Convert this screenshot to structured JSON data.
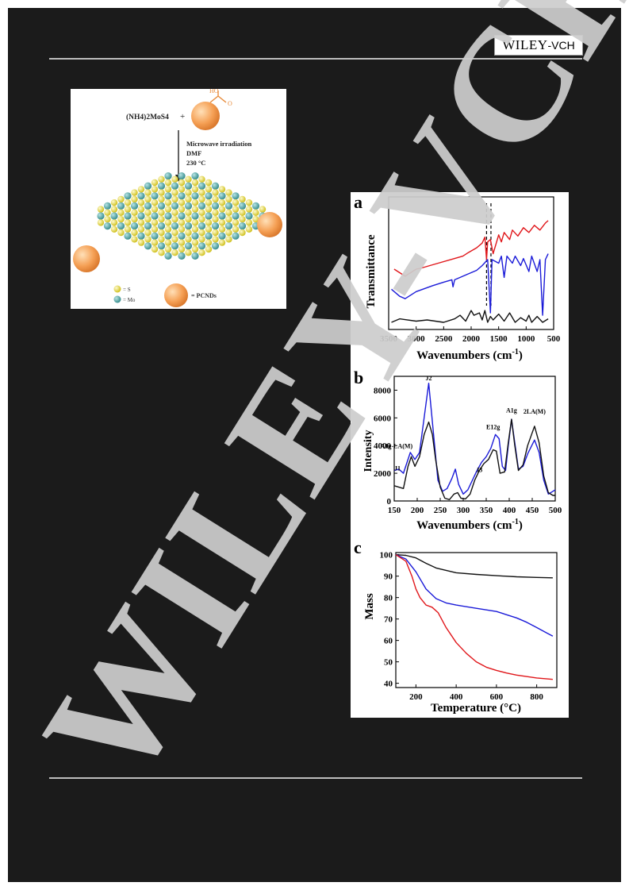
{
  "logo": {
    "wiley": "WILEY",
    "vch": "-VCH"
  },
  "watermark": {
    "text": "WILEY-VCH"
  },
  "scheme": {
    "reactant1": "(NH4)2MoS4",
    "plus": "+",
    "ho_label": "HO",
    "o_label": "O",
    "conditions": [
      "Microwave irradiation",
      "DMF",
      "230 °C"
    ],
    "legend_s": "= S",
    "legend_mo": "= Mo",
    "legend_pcnd": "= PCNDs"
  },
  "colors": {
    "red": "#e0161a",
    "blue": "#1a1ad8",
    "black": "#111111",
    "orange": "#f5a055",
    "yellow": "#e8dc2a",
    "teal": "#3f9e9e"
  },
  "chart_data": [
    {
      "panel": "a",
      "type": "line",
      "xlabel": "Wavenumbers (cm-1)",
      "ylabel": "Transmittance",
      "xlim": [
        3500,
        500
      ],
      "x_ticks": [
        3500,
        3000,
        2500,
        2000,
        1500,
        1000,
        500
      ],
      "dashed_lines_x": [
        1720,
        1640
      ],
      "series": [
        {
          "color": "red",
          "points": [
            [
              3400,
              0.47
            ],
            [
              3200,
              0.41
            ],
            [
              3000,
              0.47
            ],
            [
              2900,
              0.48
            ],
            [
              2600,
              0.52
            ],
            [
              2300,
              0.56
            ],
            [
              2150,
              0.58
            ],
            [
              2050,
              0.61
            ],
            [
              1900,
              0.65
            ],
            [
              1800,
              0.69
            ],
            [
              1750,
              0.74
            ],
            [
              1720,
              0.55
            ],
            [
              1700,
              0.7
            ],
            [
              1650,
              0.72
            ],
            [
              1600,
              0.6
            ],
            [
              1500,
              0.76
            ],
            [
              1450,
              0.7
            ],
            [
              1400,
              0.78
            ],
            [
              1300,
              0.72
            ],
            [
              1250,
              0.8
            ],
            [
              1150,
              0.75
            ],
            [
              1050,
              0.82
            ],
            [
              950,
              0.78
            ],
            [
              850,
              0.84
            ],
            [
              750,
              0.8
            ],
            [
              650,
              0.86
            ],
            [
              600,
              0.88
            ]
          ]
        },
        {
          "color": "blue",
          "points": [
            [
              3450,
              0.3
            ],
            [
              3300,
              0.24
            ],
            [
              3200,
              0.22
            ],
            [
              3000,
              0.28
            ],
            [
              2700,
              0.33
            ],
            [
              2500,
              0.36
            ],
            [
              2350,
              0.38
            ],
            [
              2330,
              0.32
            ],
            [
              2300,
              0.38
            ],
            [
              2100,
              0.42
            ],
            [
              1900,
              0.46
            ],
            [
              1800,
              0.5
            ],
            [
              1700,
              0.55
            ],
            [
              1650,
              0.1
            ],
            [
              1620,
              0.55
            ],
            [
              1500,
              0.52
            ],
            [
              1450,
              0.58
            ],
            [
              1400,
              0.4
            ],
            [
              1350,
              0.58
            ],
            [
              1250,
              0.52
            ],
            [
              1200,
              0.58
            ],
            [
              1100,
              0.5
            ],
            [
              1050,
              0.56
            ],
            [
              950,
              0.45
            ],
            [
              900,
              0.58
            ],
            [
              800,
              0.45
            ],
            [
              750,
              0.55
            ],
            [
              700,
              0.08
            ],
            [
              650,
              0.55
            ],
            [
              600,
              0.6
            ]
          ]
        },
        {
          "color": "black",
          "points": [
            [
              3450,
              0.02
            ],
            [
              3300,
              0.05
            ],
            [
              3000,
              0.03
            ],
            [
              2800,
              0.04
            ],
            [
              2500,
              0.02
            ],
            [
              2300,
              0.05
            ],
            [
              2200,
              0.08
            ],
            [
              2100,
              0.03
            ],
            [
              2000,
              0.12
            ],
            [
              1950,
              0.08
            ],
            [
              1850,
              0.1
            ],
            [
              1800,
              0.04
            ],
            [
              1750,
              0.12
            ],
            [
              1700,
              0.02
            ],
            [
              1650,
              0.07
            ],
            [
              1600,
              0.04
            ],
            [
              1500,
              0.09
            ],
            [
              1400,
              0.03
            ],
            [
              1300,
              0.1
            ],
            [
              1200,
              0.02
            ],
            [
              1100,
              0.06
            ],
            [
              1000,
              0.03
            ],
            [
              950,
              0.08
            ],
            [
              900,
              0.02
            ],
            [
              800,
              0.07
            ],
            [
              700,
              0.02
            ],
            [
              600,
              0.05
            ]
          ]
        }
      ]
    },
    {
      "panel": "b",
      "type": "line",
      "xlabel": "Wavenumbers (cm-1)",
      "ylabel": "Intensity",
      "xlim": [
        150,
        500
      ],
      "ylim": [
        0,
        9000
      ],
      "x_ticks": [
        150,
        200,
        250,
        300,
        350,
        400,
        450,
        500
      ],
      "y_ticks": [
        0,
        2000,
        4000,
        6000,
        8000
      ],
      "annotations": [
        {
          "text": "J1",
          "x": 157,
          "y": 2200
        },
        {
          "text": "A1g-LA(M)",
          "x": 155,
          "y": 3800
        },
        {
          "text": "J2",
          "x": 225,
          "y": 8700
        },
        {
          "text": "J3",
          "x": 335,
          "y": 2100
        },
        {
          "text": "E12g",
          "x": 365,
          "y": 5200
        },
        {
          "text": "A1g",
          "x": 405,
          "y": 6400
        },
        {
          "text": "2LA(M)",
          "x": 455,
          "y": 6300
        }
      ],
      "series": [
        {
          "color": "blue",
          "points": [
            [
              150,
              2200
            ],
            [
              160,
              2300
            ],
            [
              170,
              2000
            ],
            [
              185,
              3500
            ],
            [
              195,
              3000
            ],
            [
              205,
              3500
            ],
            [
              215,
              6000
            ],
            [
              225,
              8500
            ],
            [
              235,
              5000
            ],
            [
              245,
              1500
            ],
            [
              255,
              700
            ],
            [
              265,
              900
            ],
            [
              275,
              1600
            ],
            [
              283,
              2300
            ],
            [
              290,
              1200
            ],
            [
              300,
              500
            ],
            [
              310,
              800
            ],
            [
              320,
              1500
            ],
            [
              330,
              2200
            ],
            [
              340,
              2800
            ],
            [
              350,
              3200
            ],
            [
              360,
              3800
            ],
            [
              370,
              4800
            ],
            [
              378,
              4500
            ],
            [
              385,
              2500
            ],
            [
              392,
              2200
            ],
            [
              398,
              4000
            ],
            [
              405,
              5900
            ],
            [
              412,
              4200
            ],
            [
              420,
              2300
            ],
            [
              430,
              2500
            ],
            [
              440,
              3400
            ],
            [
              455,
              4400
            ],
            [
              465,
              3500
            ],
            [
              475,
              1500
            ],
            [
              485,
              500
            ],
            [
              495,
              700
            ],
            [
              500,
              800
            ]
          ]
        },
        {
          "color": "black",
          "points": [
            [
              150,
              1100
            ],
            [
              160,
              1000
            ],
            [
              170,
              900
            ],
            [
              180,
              2500
            ],
            [
              187,
              3200
            ],
            [
              195,
              2500
            ],
            [
              205,
              3200
            ],
            [
              215,
              4800
            ],
            [
              225,
              5700
            ],
            [
              233,
              4800
            ],
            [
              240,
              3000
            ],
            [
              250,
              1000
            ],
            [
              260,
              200
            ],
            [
              270,
              100
            ],
            [
              280,
              500
            ],
            [
              288,
              600
            ],
            [
              295,
              200
            ],
            [
              305,
              150
            ],
            [
              315,
              500
            ],
            [
              325,
              1500
            ],
            [
              335,
              2200
            ],
            [
              345,
              2700
            ],
            [
              355,
              3000
            ],
            [
              365,
              3700
            ],
            [
              372,
              3600
            ],
            [
              380,
              2000
            ],
            [
              390,
              2100
            ],
            [
              398,
              4200
            ],
            [
              405,
              5900
            ],
            [
              412,
              4000
            ],
            [
              420,
              2200
            ],
            [
              430,
              2600
            ],
            [
              440,
              4000
            ],
            [
              455,
              5400
            ],
            [
              465,
              4200
            ],
            [
              475,
              1800
            ],
            [
              485,
              600
            ],
            [
              495,
              400
            ],
            [
              500,
              400
            ]
          ]
        }
      ]
    },
    {
      "panel": "c",
      "type": "line",
      "xlabel": "Temperature (°C)",
      "ylabel": "Mass",
      "xlim": [
        100,
        900
      ],
      "ylim": [
        38,
        101
      ],
      "x_ticks": [
        200,
        400,
        600,
        800
      ],
      "y_ticks": [
        40,
        50,
        60,
        70,
        80,
        90,
        100
      ],
      "series": [
        {
          "color": "black",
          "points": [
            [
              100,
              100
            ],
            [
              150,
              99.7
            ],
            [
              200,
              98.5
            ],
            [
              250,
              96
            ],
            [
              300,
              93.8
            ],
            [
              400,
              91.6
            ],
            [
              500,
              90.8
            ],
            [
              600,
              90.2
            ],
            [
              700,
              89.7
            ],
            [
              800,
              89.4
            ],
            [
              880,
              89.2
            ]
          ]
        },
        {
          "color": "blue",
          "points": [
            [
              100,
              100
            ],
            [
              150,
              98
            ],
            [
              200,
              92
            ],
            [
              250,
              84
            ],
            [
              300,
              79.5
            ],
            [
              350,
              77.5
            ],
            [
              400,
              76.5
            ],
            [
              500,
              75
            ],
            [
              600,
              73.5
            ],
            [
              700,
              70.5
            ],
            [
              750,
              68.5
            ],
            [
              800,
              66
            ],
            [
              850,
              63.5
            ],
            [
              880,
              62
            ]
          ]
        },
        {
          "color": "red",
          "points": [
            [
              100,
              100
            ],
            [
              150,
              97
            ],
            [
              180,
              90
            ],
            [
              200,
              84
            ],
            [
              220,
              80
            ],
            [
              250,
              76.5
            ],
            [
              280,
              75.5
            ],
            [
              310,
              73
            ],
            [
              350,
              66
            ],
            [
              400,
              59
            ],
            [
              450,
              54
            ],
            [
              500,
              50
            ],
            [
              550,
              47.5
            ],
            [
              600,
              46
            ],
            [
              650,
              44.8
            ],
            [
              700,
              43.8
            ],
            [
              800,
              42.5
            ],
            [
              880,
              41.8
            ]
          ]
        }
      ]
    }
  ],
  "panels": {
    "a": {
      "letter": "a",
      "ylabel": "Transmittance",
      "xlabel": "Wavenumbers (cm",
      "xlabel_sup": "-1",
      "xlabel_end": ")"
    },
    "b": {
      "letter": "b",
      "ylabel": "Intensity",
      "xlabel": "Wavenumbers (cm",
      "xlabel_sup": "-1",
      "xlabel_end": ")"
    },
    "c": {
      "letter": "c",
      "ylabel": "Mass",
      "xlabel": "Temperature (°C)"
    }
  }
}
